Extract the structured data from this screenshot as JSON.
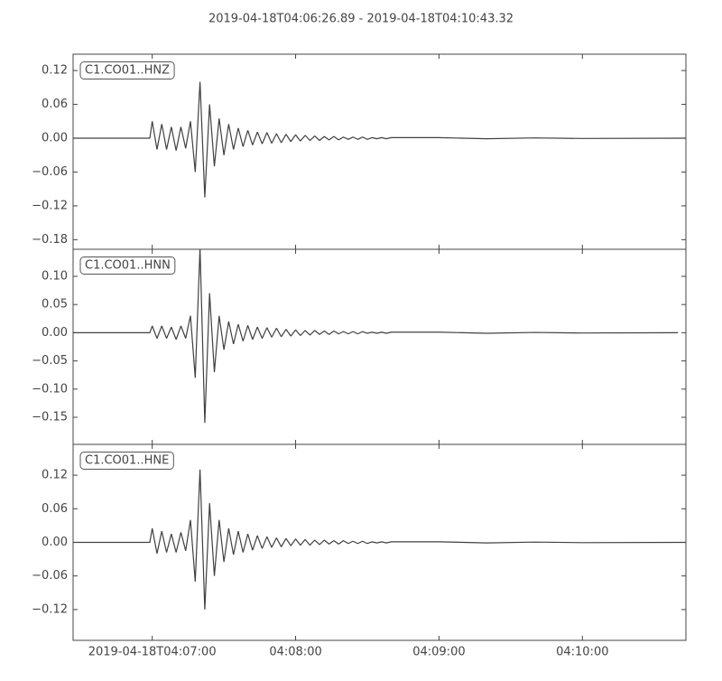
{
  "chart_data": [
    {
      "type": "line",
      "title": "2019-04-18T04:06:26.89  -  2019-04-18T04:10:43.32",
      "x": [
        "2019-04-18T04:06:26.89",
        "2019-04-18T04:06:59",
        "2019-04-18T04:07:00",
        "2019-04-18T04:07:02",
        "2019-04-18T04:07:04",
        "2019-04-18T04:07:06",
        "2019-04-18T04:07:08",
        "2019-04-18T04:07:10",
        "2019-04-18T04:07:12",
        "2019-04-18T04:07:14",
        "2019-04-18T04:07:16",
        "2019-04-18T04:07:18",
        "2019-04-18T04:07:20",
        "2019-04-18T04:07:22",
        "2019-04-18T04:07:24",
        "2019-04-18T04:07:26",
        "2019-04-18T04:07:28",
        "2019-04-18T04:07:30",
        "2019-04-18T04:07:32",
        "2019-04-18T04:07:34",
        "2019-04-18T04:07:36",
        "2019-04-18T04:07:38",
        "2019-04-18T04:07:40",
        "2019-04-18T04:07:42",
        "2019-04-18T04:07:44",
        "2019-04-18T04:07:46",
        "2019-04-18T04:07:48",
        "2019-04-18T04:07:50",
        "2019-04-18T04:07:52",
        "2019-04-18T04:07:54",
        "2019-04-18T04:07:56",
        "2019-04-18T04:07:58",
        "2019-04-18T04:08:00",
        "2019-04-18T04:08:02",
        "2019-04-18T04:08:04",
        "2019-04-18T04:08:06",
        "2019-04-18T04:08:08",
        "2019-04-18T04:08:10",
        "2019-04-18T04:08:12",
        "2019-04-18T04:08:14",
        "2019-04-18T04:08:16",
        "2019-04-18T04:08:18",
        "2019-04-18T04:08:20",
        "2019-04-18T04:08:22",
        "2019-04-18T04:08:24",
        "2019-04-18T04:08:26",
        "2019-04-18T04:08:28",
        "2019-04-18T04:08:30",
        "2019-04-18T04:08:32",
        "2019-04-18T04:08:34",
        "2019-04-18T04:08:36",
        "2019-04-18T04:08:38",
        "2019-04-18T04:08:40",
        "2019-04-18T04:09:00",
        "2019-04-18T04:09:20",
        "2019-04-18T04:09:40",
        "2019-04-18T04:10:00",
        "2019-04-18T04:10:43.32"
      ],
      "series": [
        {
          "name": "C1.CO01..HNZ",
          "color": "#404040",
          "values": [
            0,
            0,
            0.03,
            -0.02,
            0.025,
            -0.02,
            0.02,
            -0.022,
            0.02,
            -0.018,
            0.03,
            -0.06,
            0.1,
            -0.105,
            0.06,
            -0.05,
            0.035,
            -0.03,
            0.025,
            -0.02,
            0.018,
            -0.015,
            0.014,
            -0.012,
            0.011,
            -0.01,
            0.01,
            -0.009,
            0.008,
            -0.008,
            0.007,
            -0.006,
            0.006,
            -0.005,
            0.005,
            -0.004,
            0.004,
            -0.004,
            0.003,
            -0.003,
            0.003,
            -0.003,
            0.002,
            -0.002,
            0.002,
            -0.002,
            0.002,
            -0.002,
            0.001,
            -0.001,
            0.001,
            -0.001,
            0.001,
            0.001,
            -0.001,
            0.0005,
            -0.0005,
            0
          ]
        }
      ],
      "xlim": [
        "2019-04-18T04:06:26.89",
        "2019-04-18T04:10:43.32"
      ],
      "ylim": [
        -0.197,
        0.149
      ],
      "yticks": [
        {
          "value": -0.18,
          "label": "−0.18"
        },
        {
          "value": -0.12,
          "label": "−0.12"
        },
        {
          "value": -0.06,
          "label": "−0.06"
        },
        {
          "value": 0,
          "label": "0.00"
        },
        {
          "value": 0.06,
          "label": "0.06"
        },
        {
          "value": 0.12,
          "label": "0.12"
        }
      ]
    },
    {
      "type": "line",
      "x": [
        "2019-04-18T04:06:26.89",
        "2019-04-18T04:06:59",
        "2019-04-18T04:07:00",
        "2019-04-18T04:07:02",
        "2019-04-18T04:07:04",
        "2019-04-18T04:07:06",
        "2019-04-18T04:07:08",
        "2019-04-18T04:07:10",
        "2019-04-18T04:07:12",
        "2019-04-18T04:07:14",
        "2019-04-18T04:07:16",
        "2019-04-18T04:07:18",
        "2019-04-18T04:07:20",
        "2019-04-18T04:07:22",
        "2019-04-18T04:07:24",
        "2019-04-18T04:07:26",
        "2019-04-18T04:07:28",
        "2019-04-18T04:07:30",
        "2019-04-18T04:07:32",
        "2019-04-18T04:07:34",
        "2019-04-18T04:07:36",
        "2019-04-18T04:07:38",
        "2019-04-18T04:07:40",
        "2019-04-18T04:07:42",
        "2019-04-18T04:07:44",
        "2019-04-18T04:07:46",
        "2019-04-18T04:07:48",
        "2019-04-18T04:07:50",
        "2019-04-18T04:07:52",
        "2019-04-18T04:07:54",
        "2019-04-18T04:07:56",
        "2019-04-18T04:07:58",
        "2019-04-18T04:08:00",
        "2019-04-18T04:08:02",
        "2019-04-18T04:08:04",
        "2019-04-18T04:08:06",
        "2019-04-18T04:08:08",
        "2019-04-18T04:08:10",
        "2019-04-18T04:08:12",
        "2019-04-18T04:08:14",
        "2019-04-18T04:08:16",
        "2019-04-18T04:08:18",
        "2019-04-18T04:08:20",
        "2019-04-18T04:08:22",
        "2019-04-18T04:08:24",
        "2019-04-18T04:08:26",
        "2019-04-18T04:08:28",
        "2019-04-18T04:08:30",
        "2019-04-18T04:08:32",
        "2019-04-18T04:08:34",
        "2019-04-18T04:08:36",
        "2019-04-18T04:08:38",
        "2019-04-18T04:08:40",
        "2019-04-18T04:09:00",
        "2019-04-18T04:09:20",
        "2019-04-18T04:09:40",
        "2019-04-18T04:10:00",
        "2019-04-18T04:10:40"
      ],
      "series": [
        {
          "name": "C1.CO01..HNN",
          "color": "#404040",
          "values": [
            0,
            0,
            0.012,
            -0.01,
            0.012,
            -0.01,
            0.01,
            -0.012,
            0.012,
            -0.01,
            0.03,
            -0.08,
            0.15,
            -0.16,
            0.07,
            -0.07,
            0.03,
            -0.03,
            0.02,
            -0.02,
            0.015,
            -0.015,
            0.013,
            -0.012,
            0.01,
            -0.01,
            0.009,
            -0.008,
            0.008,
            -0.007,
            0.006,
            -0.006,
            0.005,
            -0.005,
            0.004,
            -0.004,
            0.004,
            -0.003,
            0.003,
            -0.003,
            0.003,
            -0.002,
            0.002,
            -0.002,
            0.002,
            -0.002,
            0.002,
            -0.001,
            0.001,
            -0.001,
            0.001,
            -0.001,
            0.001,
            0.001,
            -0.001,
            0.0005,
            -0.0005,
            0
          ]
        }
      ],
      "xlim": [
        "2019-04-18T04:06:26.89",
        "2019-04-18T04:10:43.32"
      ],
      "ylim": [
        -0.198,
        0.148
      ],
      "yticks": [
        {
          "value": -0.15,
          "label": "−0.15"
        },
        {
          "value": -0.1,
          "label": "−0.10"
        },
        {
          "value": -0.05,
          "label": "−0.05"
        },
        {
          "value": 0,
          "label": "0.00"
        },
        {
          "value": 0.05,
          "label": "0.05"
        },
        {
          "value": 0.1,
          "label": "0.10"
        }
      ]
    },
    {
      "type": "line",
      "x": [
        "2019-04-18T04:06:26.89",
        "2019-04-18T04:06:59",
        "2019-04-18T04:07:00",
        "2019-04-18T04:07:02",
        "2019-04-18T04:07:04",
        "2019-04-18T04:07:06",
        "2019-04-18T04:07:08",
        "2019-04-18T04:07:10",
        "2019-04-18T04:07:12",
        "2019-04-18T04:07:14",
        "2019-04-18T04:07:16",
        "2019-04-18T04:07:18",
        "2019-04-18T04:07:20",
        "2019-04-18T04:07:22",
        "2019-04-18T04:07:24",
        "2019-04-18T04:07:26",
        "2019-04-18T04:07:28",
        "2019-04-18T04:07:30",
        "2019-04-18T04:07:32",
        "2019-04-18T04:07:34",
        "2019-04-18T04:07:36",
        "2019-04-18T04:07:38",
        "2019-04-18T04:07:40",
        "2019-04-18T04:07:42",
        "2019-04-18T04:07:44",
        "2019-04-18T04:07:46",
        "2019-04-18T04:07:48",
        "2019-04-18T04:07:50",
        "2019-04-18T04:07:52",
        "2019-04-18T04:07:54",
        "2019-04-18T04:07:56",
        "2019-04-18T04:07:58",
        "2019-04-18T04:08:00",
        "2019-04-18T04:08:02",
        "2019-04-18T04:08:04",
        "2019-04-18T04:08:06",
        "2019-04-18T04:08:08",
        "2019-04-18T04:08:10",
        "2019-04-18T04:08:12",
        "2019-04-18T04:08:14",
        "2019-04-18T04:08:16",
        "2019-04-18T04:08:18",
        "2019-04-18T04:08:20",
        "2019-04-18T04:08:22",
        "2019-04-18T04:08:24",
        "2019-04-18T04:08:26",
        "2019-04-18T04:08:28",
        "2019-04-18T04:08:30",
        "2019-04-18T04:08:32",
        "2019-04-18T04:08:34",
        "2019-04-18T04:08:36",
        "2019-04-18T04:08:38",
        "2019-04-18T04:08:40",
        "2019-04-18T04:09:00",
        "2019-04-18T04:09:20",
        "2019-04-18T04:09:40",
        "2019-04-18T04:10:00",
        "2019-04-18T04:10:43.32"
      ],
      "series": [
        {
          "name": "C1.CO01..HNE",
          "color": "#404040",
          "values": [
            0,
            0,
            0.025,
            -0.02,
            0.02,
            -0.018,
            0.015,
            -0.018,
            0.018,
            -0.015,
            0.04,
            -0.07,
            0.13,
            -0.12,
            0.07,
            -0.06,
            0.04,
            -0.035,
            0.025,
            -0.022,
            0.02,
            -0.018,
            0.015,
            -0.014,
            0.012,
            -0.011,
            0.01,
            -0.009,
            0.008,
            -0.008,
            0.007,
            -0.006,
            0.006,
            -0.005,
            0.005,
            -0.005,
            0.004,
            -0.004,
            0.004,
            -0.003,
            0.003,
            -0.003,
            0.003,
            -0.002,
            0.002,
            -0.002,
            0.002,
            -0.002,
            0.001,
            -0.001,
            0.001,
            -0.001,
            0.001,
            0.001,
            -0.001,
            0.0005,
            -0.0005,
            0
          ]
        }
      ],
      "xlim": [
        "2019-04-18T04:06:26.89",
        "2019-04-18T04:10:43.32"
      ],
      "ylim": [
        -0.175,
        0.175
      ],
      "yticks": [
        {
          "value": -0.12,
          "label": "−0.12"
        },
        {
          "value": -0.06,
          "label": "−0.06"
        },
        {
          "value": 0,
          "label": "0.00"
        },
        {
          "value": 0.06,
          "label": "0.06"
        },
        {
          "value": 0.12,
          "label": "0.12"
        }
      ],
      "xticks": [
        "2019-04-18T04:07:00",
        {
          "value": "2019-04-18T04:08:00",
          "label": "04:08:00"
        },
        {
          "value": "2019-04-18T04:09:00",
          "label": "04:09:00"
        },
        {
          "value": "2019-04-18T04:10:00",
          "label": "04:10:00"
        }
      ]
    }
  ]
}
